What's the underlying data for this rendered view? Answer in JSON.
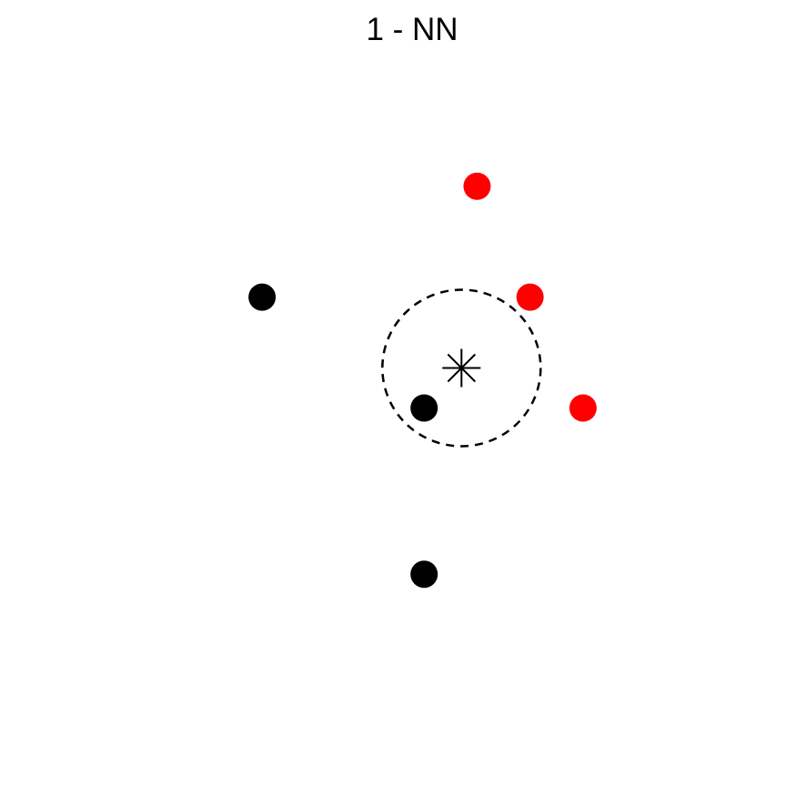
{
  "chart_data": {
    "type": "scatter",
    "title": "1 - NN",
    "xlabel": "",
    "ylabel": "",
    "axes_visible": false,
    "grid": false,
    "xlim": [
      0,
      10
    ],
    "ylim": [
      0,
      10
    ],
    "series": [
      {
        "color": "#000000",
        "marker": "filled-circle",
        "points": [
          {
            "x": 2.6,
            "y": 6.8
          },
          {
            "x": 5.2,
            "y": 5.0
          },
          {
            "x": 5.2,
            "y": 2.3
          }
        ]
      },
      {
        "color": "#ff0000",
        "marker": "filled-circle",
        "points": [
          {
            "x": 6.05,
            "y": 8.6
          },
          {
            "x": 6.9,
            "y": 6.8
          },
          {
            "x": 7.75,
            "y": 5.0
          }
        ]
      }
    ],
    "query_point": {
      "x": 5.8,
      "y": 5.65,
      "marker": "asterisk",
      "color": "#000000"
    },
    "neighborhood_circle": {
      "center_x": 5.8,
      "center_y": 5.65,
      "radius": 1.27,
      "style": "dashed",
      "color": "#000000"
    }
  }
}
